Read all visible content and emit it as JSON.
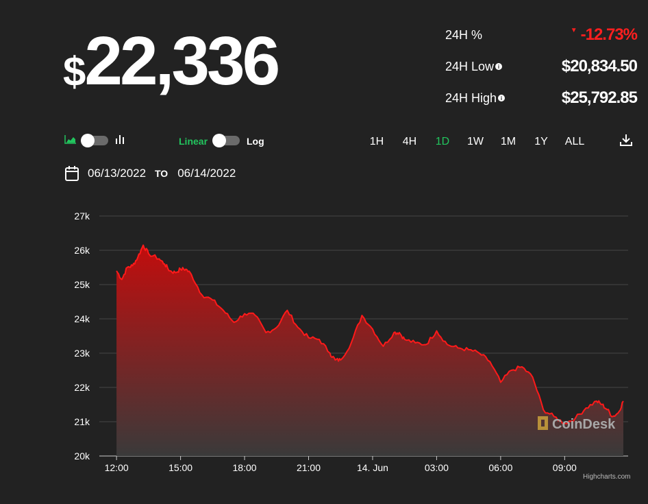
{
  "price": {
    "currency": "$",
    "value": "22,336"
  },
  "stats": {
    "change_label": "24H %",
    "change_value": "-12.73%",
    "low_label": "24H Low",
    "low_value": "$20,834.50",
    "high_label": "24H High",
    "high_value": "$25,792.85",
    "info_glyph": "i"
  },
  "controls": {
    "linear_label": "Linear",
    "log_label": "Log",
    "ranges": [
      "1H",
      "4H",
      "1D",
      "1W",
      "1M",
      "1Y",
      "ALL"
    ],
    "active_range": "1D"
  },
  "dates": {
    "from": "06/13/2022",
    "to_label": "TO",
    "to": "06/14/2022"
  },
  "colors": {
    "accent": "#22c55e",
    "negative": "#ff1f1f",
    "line": "#ff1a1a",
    "background": "#222222"
  },
  "chart_data": {
    "type": "area",
    "x_tick_labels": [
      "12:00",
      "15:00",
      "18:00",
      "21:00",
      "14. Jun",
      "03:00",
      "06:00",
      "09:00"
    ],
    "y_tick_labels": [
      "27k",
      "26k",
      "25k",
      "24k",
      "23k",
      "22k",
      "21k",
      "20k"
    ],
    "ylim": [
      20000,
      27000
    ],
    "grid": true,
    "x_hours": [
      0,
      0.25,
      0.5,
      0.75,
      1,
      1.25,
      1.5,
      2,
      2.25,
      2.5,
      2.75,
      3,
      3.25,
      3.5,
      4,
      4.5,
      5,
      5.5,
      6,
      6.5,
      7,
      7.5,
      8,
      8.5,
      9,
      9.5,
      10,
      10.25,
      10.5,
      11,
      11.5,
      12,
      12.5,
      13,
      13.25,
      13.5,
      14,
      14.5,
      15,
      15.5,
      16,
      16.5,
      17,
      17.5,
      18,
      18.5,
      19,
      19.5,
      20,
      20.5,
      21,
      21.5,
      22,
      22.5,
      22.75,
      23,
      23.25,
      23.5,
      23.75
    ],
    "values": [
      25400,
      25150,
      25500,
      25550,
      25800,
      26150,
      25900,
      25750,
      25600,
      25400,
      25350,
      25450,
      25450,
      25300,
      24700,
      24550,
      24250,
      23900,
      24150,
      24100,
      23600,
      23750,
      24250,
      23750,
      23450,
      23400,
      23000,
      22800,
      22800,
      23300,
      24100,
      23700,
      23200,
      23600,
      23600,
      23400,
      23300,
      23250,
      23650,
      23250,
      23150,
      23100,
      23000,
      22750,
      22150,
      22500,
      22600,
      22300,
      21350,
      21150,
      20950,
      21100,
      21400,
      21600,
      21500,
      21350,
      21150,
      21250,
      21600
    ],
    "watermark": "CoinDesk",
    "credits": "Highcharts.com"
  }
}
